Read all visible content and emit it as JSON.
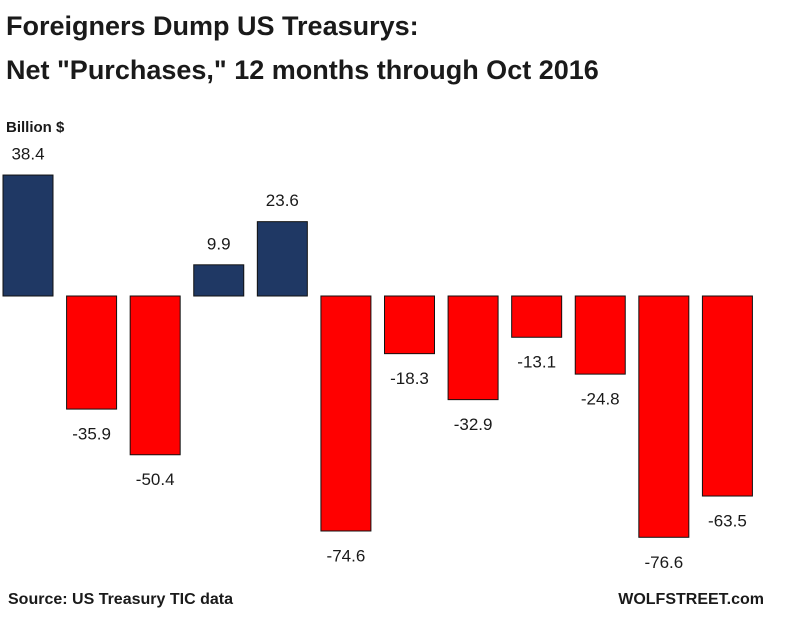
{
  "chart_data": {
    "type": "bar",
    "title": "Foreigners Dump US Treasurys:",
    "subtitle": "Net \"Purchases,\" 12 months through Oct 2016",
    "y_label": "Billion $",
    "source": "Source: US Treasury TIC data",
    "credit": "WOLFSTREET.com",
    "values": [
      38.4,
      -35.9,
      -50.4,
      9.9,
      23.6,
      -74.6,
      -18.3,
      -32.9,
      -13.1,
      -24.8,
      -76.6,
      -63.5
    ],
    "positive_color": "#1f3864",
    "negative_color": "#ff0000"
  }
}
